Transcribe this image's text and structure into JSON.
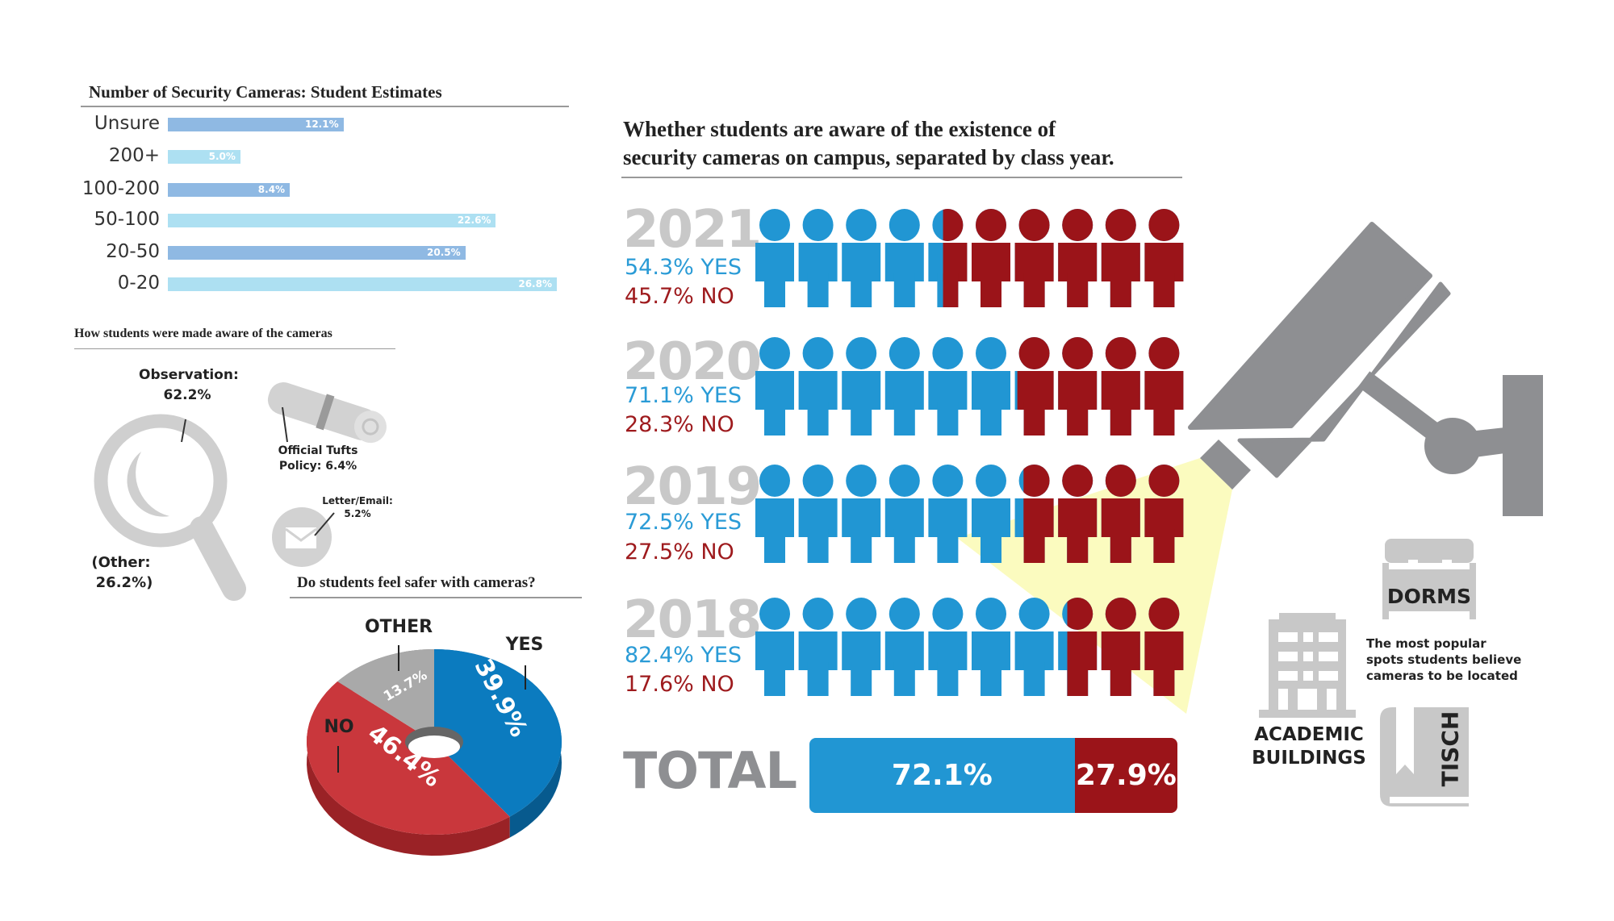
{
  "chart_data": [
    {
      "type": "bar",
      "title": "Number of Security Cameras: Student Estimates",
      "categories": [
        "Unsure",
        "200+",
        "100-200",
        "50-100",
        "20-50",
        "0-20"
      ],
      "values": [
        12.1,
        5.0,
        8.4,
        22.6,
        20.5,
        26.8
      ],
      "value_labels": [
        "12.1%",
        "5.0%",
        "8.4%",
        "22.6%",
        "20.5%",
        "26.8%"
      ],
      "colors": [
        "#8fb9e3",
        "#ade0f2",
        "#8fb9e3",
        "#ade0f2",
        "#8fb9e3",
        "#ade0f2"
      ],
      "orientation": "horizontal",
      "xlim": [
        0,
        26.8
      ]
    },
    {
      "type": "table",
      "title": "How students were made aware of the cameras",
      "items": [
        {
          "label": "Observation:",
          "value": "62.2%",
          "icon": "magnifier-icon"
        },
        {
          "label": "Official Tufts",
          "label2": "Policy: 6.4%",
          "icon": "scroll-icon"
        },
        {
          "label": "Letter/Email:",
          "value": "5.2%",
          "icon": "envelope-icon"
        },
        {
          "label": "(Other:",
          "value": "26.2%)"
        }
      ]
    },
    {
      "type": "pie",
      "title": "Do students feel safer with cameras?",
      "slices": [
        {
          "name": "YES",
          "value": 39.9,
          "label": "39.9%",
          "color": "#0b7bbf",
          "side": "#075a8e"
        },
        {
          "name": "NO",
          "value": 46.4,
          "label": "46.4%",
          "color": "#c9373c",
          "side": "#9a2226"
        },
        {
          "name": "OTHER",
          "value": 13.7,
          "label": "13.7%",
          "color": "#a9a9a9",
          "side": "#7d7d7d"
        }
      ]
    },
    {
      "type": "bar",
      "title_line1": "Whether students are aware of the existence of",
      "title_line2": "security cameras on campus, separated by class year.",
      "rows": [
        {
          "year": "2021",
          "yes": 54.3,
          "no": 45.7,
          "yes_label": "54.3% YES",
          "no_label": "45.7% NO"
        },
        {
          "year": "2020",
          "yes": 71.1,
          "no": 28.3,
          "yes_label": "71.1% YES",
          "no_label": "28.3% NO"
        },
        {
          "year": "2019",
          "yes": 72.5,
          "no": 27.5,
          "yes_label": "72.5% YES",
          "no_label": "27.5% NO"
        },
        {
          "year": "2018",
          "yes": 82.4,
          "no": 17.6,
          "yes_label": "82.4% YES",
          "no_label": "17.6% NO"
        }
      ],
      "total": {
        "label": "TOTAL",
        "yes": 72.1,
        "no": 27.9,
        "yes_label": "72.1%",
        "no_label": "27.9%"
      },
      "colors": {
        "yes": "#2196d3",
        "no": "#9b1419"
      }
    }
  ],
  "locations": {
    "dorms": "DORMS",
    "academic_line1": "ACADEMIC",
    "academic_line2": "BUILDINGS",
    "tisch": "TISCH",
    "desc_line1": "The most popular",
    "desc_line2": "spots students believe",
    "desc_line3": "cameras to be located"
  }
}
